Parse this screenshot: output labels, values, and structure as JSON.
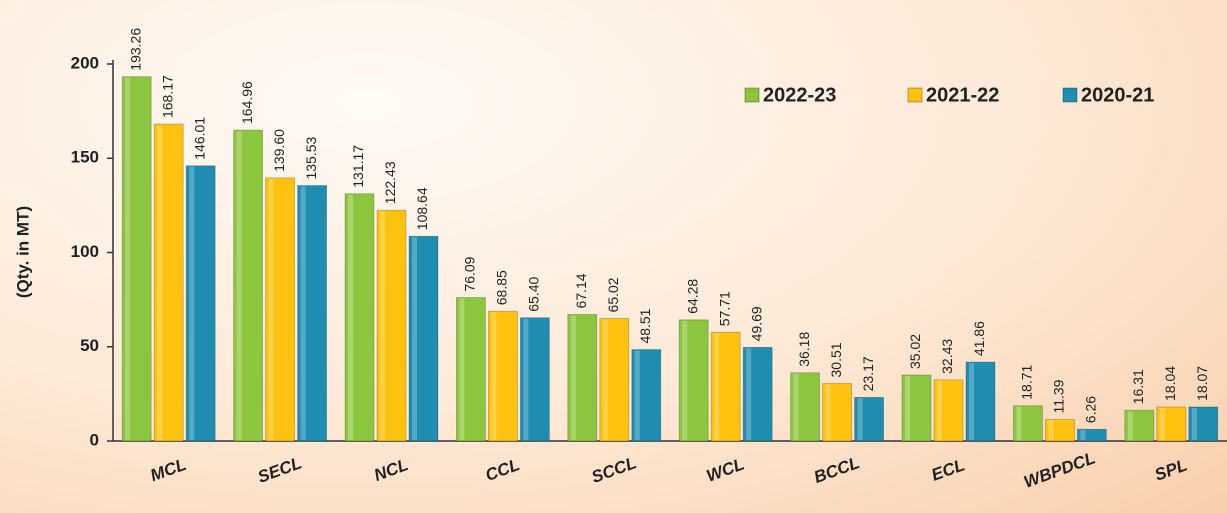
{
  "chart_data": {
    "type": "bar",
    "y_label": "(Qty. in MT)",
    "categories": [
      "MCL",
      "SECL",
      "NCL",
      "CCL",
      "SCCL",
      "WCL",
      "BCCL",
      "ECL",
      "WBPDCL",
      "SPL"
    ],
    "series": [
      {
        "name": "2022-23",
        "color": "#8cc63e",
        "values": [
          193.26,
          164.96,
          131.17,
          76.09,
          67.14,
          64.28,
          36.18,
          35.02,
          18.71,
          16.31
        ],
        "value_labels": [
          "193.26",
          "164.96",
          "131.17",
          "76.09",
          "67.14",
          "64.28",
          "36.18",
          "35.02",
          "18.71",
          "16.31"
        ]
      },
      {
        "name": "2021-22",
        "color": "#ffc20f",
        "values": [
          168.17,
          139.6,
          122.43,
          68.85,
          65.02,
          57.71,
          30.51,
          32.43,
          11.39,
          18.04
        ],
        "value_labels": [
          "168.17",
          "139.60",
          "122.43",
          "68.85",
          "65.02",
          "57.71",
          "30.51",
          "32.43",
          "11.39",
          "18.04"
        ]
      },
      {
        "name": "2020-21",
        "color": "#1e8db0",
        "values": [
          146.01,
          135.53,
          108.64,
          65.4,
          48.51,
          49.69,
          23.17,
          41.86,
          6.26,
          18.07
        ],
        "value_labels": [
          "146.01",
          "135.53",
          "108.64",
          "65.40",
          "48.51",
          "49.69",
          "23.17",
          "41.86",
          "6.26",
          "18.07"
        ]
      }
    ],
    "ylim": [
      0,
      200
    ],
    "yticks": [
      0,
      50,
      100,
      150,
      200
    ],
    "legend": "top-right"
  }
}
